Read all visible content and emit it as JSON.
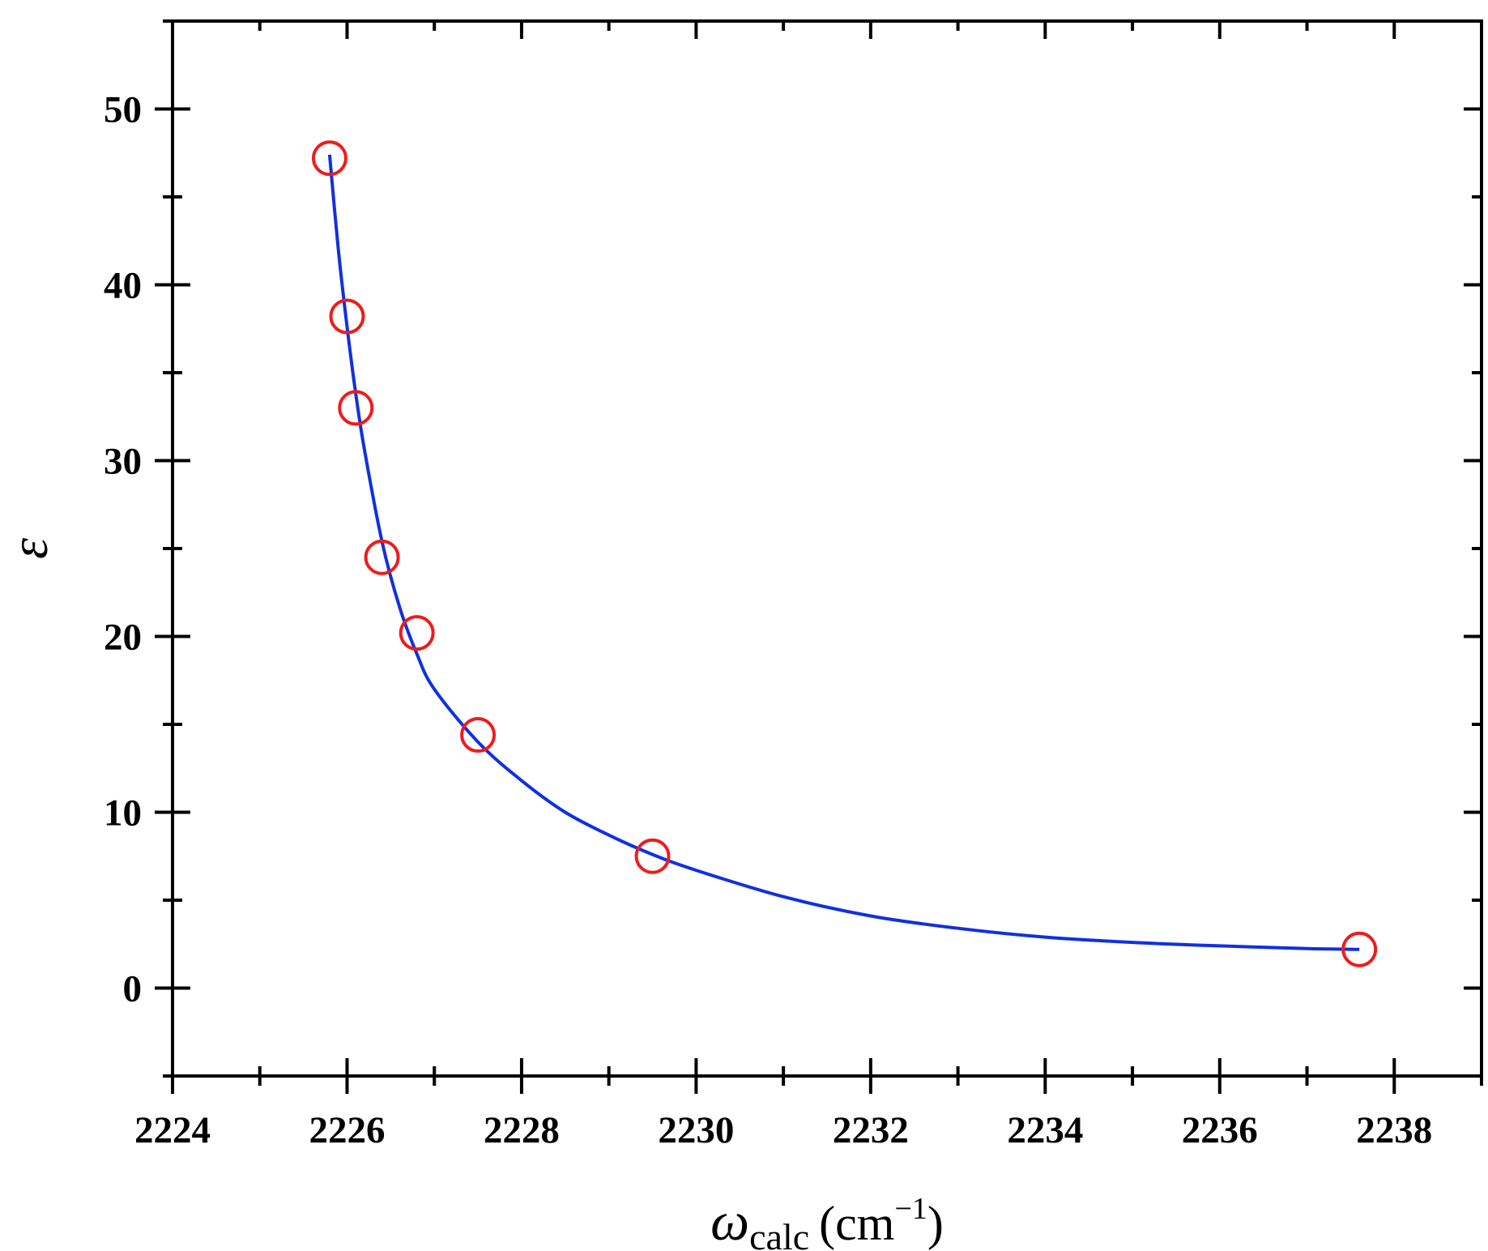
{
  "chart_data": {
    "type": "scatter",
    "xlabel": {
      "symbol": "ω",
      "subscript": "calc",
      "unit_prefix": "(cm",
      "unit_superscript": "−1",
      "unit_suffix": ")"
    },
    "ylabel": "ε",
    "xlim": [
      2224,
      2239
    ],
    "ylim": [
      -5,
      55
    ],
    "x_ticks": [
      2224,
      2226,
      2228,
      2230,
      2232,
      2234,
      2236,
      2238
    ],
    "y_ticks": [
      0,
      10,
      20,
      30,
      40,
      50
    ],
    "x_minor_step": 1,
    "y_minor_step": 5,
    "grid": false,
    "series": [
      {
        "kind": "points",
        "marker": "open-circle",
        "color": "#ee1c1c",
        "x": [
          2225.8,
          2226.0,
          2226.1,
          2226.4,
          2226.8,
          2227.5,
          2229.5,
          2237.6
        ],
        "y": [
          47.2,
          38.2,
          33.0,
          24.5,
          20.2,
          14.4,
          7.5,
          2.2
        ]
      },
      {
        "kind": "fit-curve",
        "color": "#1030e0",
        "x": [
          2225.8,
          2225.9,
          2226.0,
          2226.1,
          2226.2,
          2226.4,
          2226.6,
          2226.8,
          2227.0,
          2227.5,
          2228.0,
          2228.5,
          2229.0,
          2229.5,
          2230.0,
          2231.0,
          2232.0,
          2233.0,
          2234.0,
          2235.0,
          2236.0,
          2237.0,
          2237.6
        ],
        "y": [
          47.4,
          42.0,
          37.6,
          33.8,
          30.6,
          25.4,
          21.7,
          19.0,
          17.0,
          14.0,
          11.8,
          10.0,
          8.7,
          7.6,
          6.7,
          5.2,
          4.1,
          3.4,
          2.9,
          2.6,
          2.4,
          2.25,
          2.2
        ]
      }
    ]
  }
}
